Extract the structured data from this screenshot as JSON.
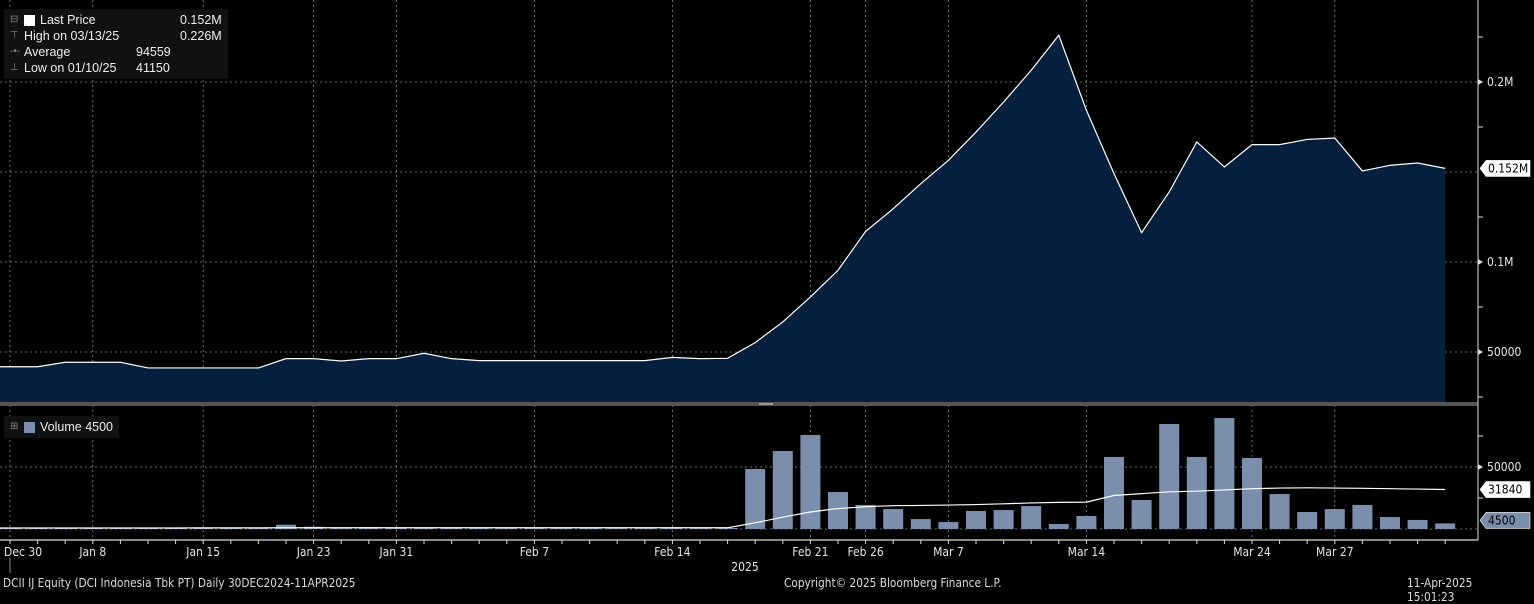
{
  "legend": {
    "last_price_label": "Last Price",
    "last_price_value": "0.152M",
    "high_label": "High on 03/13/25",
    "high_value": "0.226M",
    "average_label": "Average",
    "average_value": "94559",
    "low_label": "Low on 01/10/25",
    "low_value": "41150",
    "volume_label": "Volume",
    "volume_value": "4500"
  },
  "footer": {
    "security": "DCII IJ Equity (DCI Indonesia Tbk PT)  Daily 30DEC2024-11APR2025",
    "copyright": "Copyright© 2025 Bloomberg Finance L.P.",
    "timestamp": "11-Apr-2025 15:01:23"
  },
  "colors": {
    "area": "#04203e",
    "line": "#ffffff",
    "bar": "#7b8fad",
    "grid": "#8a8a8a"
  },
  "chart_data": [
    {
      "type": "area",
      "title": "Last Price",
      "ylabel": "",
      "ylim": [
        0,
        245000
      ],
      "yticks": [
        50000,
        100000,
        200000
      ],
      "ytick_labels": [
        "50000",
        "0.1M",
        "0.2M"
      ],
      "gridlines_y": [
        50000,
        100000,
        150000,
        200000
      ],
      "last_value_label": "0.152M",
      "values": [
        41800,
        41800,
        44300,
        44300,
        44300,
        41150,
        41150,
        41150,
        41150,
        41150,
        46300,
        46300,
        45000,
        46300,
        46300,
        49300,
        46300,
        45200,
        45200,
        45200,
        45200,
        45200,
        45200,
        45200,
        47000,
        46300,
        46500,
        55200,
        66700,
        80600,
        95400,
        117000,
        129600,
        143500,
        156500,
        172200,
        188900,
        206500,
        226000,
        184300,
        149100,
        116300,
        138900,
        166700,
        152800,
        165200,
        165200,
        168100,
        168900,
        150600,
        153700,
        155000,
        152000
      ]
    },
    {
      "type": "bar",
      "title": "Volume",
      "ylim": [
        -4000,
        90000
      ],
      "yticks": [
        50000
      ],
      "ytick_labels": [
        "50000"
      ],
      "moving_average_label": "31840",
      "last_value_label": "4500",
      "values": [
        800,
        600,
        700,
        600,
        500,
        600,
        700,
        600,
        600,
        1000,
        3500,
        1800,
        600,
        1500,
        900,
        1200,
        900,
        800,
        700,
        1200,
        900,
        800,
        700,
        700,
        900,
        700,
        800,
        48400,
        62900,
        75800,
        29800,
        19400,
        16100,
        8000,
        5600,
        14500,
        15300,
        18500,
        4000,
        10500,
        58100,
        23400,
        84700,
        58100,
        89500,
        57300,
        28200,
        13700,
        16100,
        19400,
        9700,
        7300,
        4500
      ],
      "moving_average": [
        800,
        800,
        800,
        800,
        800,
        800,
        800,
        900,
        900,
        900,
        1000,
        1000,
        1000,
        1000,
        1000,
        1000,
        1000,
        1000,
        1000,
        1000,
        1000,
        1000,
        1000,
        1000,
        1000,
        1000,
        1000,
        5000,
        9500,
        13700,
        16500,
        18000,
        18800,
        19000,
        19300,
        19700,
        20300,
        21000,
        21500,
        21700,
        27000,
        28500,
        30000,
        30500,
        31500,
        32500,
        33000,
        33200,
        33000,
        32800,
        32500,
        32200,
        31840
      ]
    },
    {
      "type": "x_axis",
      "tick_labels": [
        "Dec 30",
        "Jan 8",
        "Jan 15",
        "Jan 23",
        "Jan 31",
        "Feb 7",
        "Feb 14",
        "Feb 21",
        "Feb 26",
        "Mar 7",
        "Mar 14",
        "Mar 24",
        "Mar 27"
      ],
      "tick_indices": [
        0,
        3,
        7,
        11,
        14,
        19,
        24,
        29,
        31,
        34,
        39,
        45,
        48
      ],
      "year_label": "2025"
    }
  ]
}
